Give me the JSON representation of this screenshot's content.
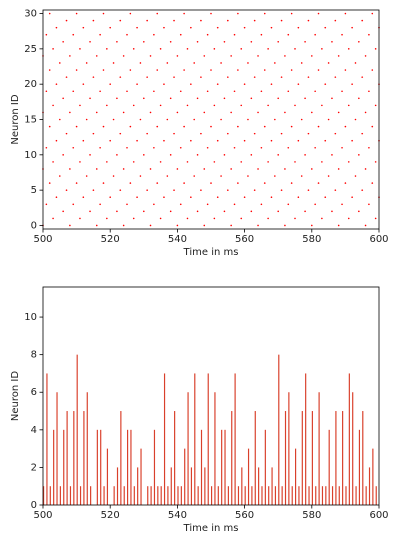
{
  "chart_data": [
    {
      "type": "scatter",
      "xlabel": "Time in ms",
      "ylabel": "Neuron ID",
      "color": "#ff0000",
      "xlim": [
        500,
        600
      ],
      "xticks": [
        500,
        520,
        540,
        560,
        580,
        600
      ],
      "ylim": [
        -0.5,
        30.5
      ],
      "yticks": [
        0,
        5,
        10,
        15,
        20,
        25,
        30
      ],
      "neurons": [
        {
          "y": 0,
          "x": [
            500,
            508,
            516,
            524,
            532,
            540,
            548,
            556,
            564,
            572,
            580,
            588,
            596
          ]
        },
        {
          "y": 1,
          "x": [
            503,
            511,
            519,
            527,
            535,
            543,
            551,
            559,
            567,
            575,
            583,
            591,
            599
          ]
        },
        {
          "y": 2,
          "x": [
            506,
            514,
            522,
            530,
            538,
            546,
            554,
            562,
            570,
            578,
            586,
            594
          ]
        },
        {
          "y": 3,
          "x": [
            501,
            509,
            517,
            525,
            533,
            541,
            549,
            557,
            565,
            573,
            581,
            589,
            597
          ]
        },
        {
          "y": 4,
          "x": [
            504,
            512,
            520,
            528,
            536,
            544,
            552,
            560,
            568,
            576,
            584,
            592,
            600
          ]
        },
        {
          "y": 5,
          "x": [
            507,
            515,
            523,
            531,
            539,
            547,
            555,
            563,
            571,
            579,
            587,
            595
          ]
        },
        {
          "y": 6,
          "x": [
            502,
            510,
            518,
            526,
            534,
            542,
            550,
            558,
            566,
            574,
            582,
            590,
            598
          ]
        },
        {
          "y": 7,
          "x": [
            505,
            513,
            521,
            529,
            537,
            545,
            553,
            561,
            569,
            577,
            585,
            593
          ]
        },
        {
          "y": 8,
          "x": [
            500,
            508,
            516,
            524,
            532,
            540,
            548,
            556,
            564,
            572,
            580,
            588,
            596
          ]
        },
        {
          "y": 9,
          "x": [
            503,
            511,
            519,
            527,
            535,
            543,
            551,
            559,
            567,
            575,
            583,
            591,
            599
          ]
        },
        {
          "y": 10,
          "x": [
            506,
            514,
            522,
            530,
            538,
            546,
            554,
            562,
            570,
            578,
            586,
            594
          ]
        },
        {
          "y": 11,
          "x": [
            501,
            509,
            517,
            525,
            533,
            541,
            549,
            557,
            565,
            573,
            581,
            589,
            597
          ]
        },
        {
          "y": 12,
          "x": [
            504,
            512,
            520,
            528,
            536,
            544,
            552,
            560,
            568,
            576,
            584,
            592,
            600
          ]
        },
        {
          "y": 13,
          "x": [
            507,
            515,
            523,
            531,
            539,
            547,
            555,
            563,
            571,
            579,
            587,
            595
          ]
        },
        {
          "y": 14,
          "x": [
            502,
            510,
            518,
            526,
            534,
            542,
            550,
            558,
            566,
            574,
            582,
            590,
            598
          ]
        },
        {
          "y": 15,
          "x": [
            505,
            513,
            521,
            529,
            537,
            545,
            553,
            561,
            569,
            577,
            585,
            593
          ]
        },
        {
          "y": 16,
          "x": [
            500,
            508,
            516,
            524,
            532,
            540,
            548,
            556,
            564,
            572,
            580,
            588,
            596
          ]
        },
        {
          "y": 17,
          "x": [
            503,
            511,
            519,
            527,
            535,
            543,
            551,
            559,
            567,
            575,
            583,
            591,
            599
          ]
        },
        {
          "y": 18,
          "x": [
            506,
            514,
            522,
            530,
            538,
            546,
            554,
            562,
            570,
            578,
            586,
            594
          ]
        },
        {
          "y": 19,
          "x": [
            501,
            509,
            517,
            525,
            533,
            541,
            549,
            557,
            565,
            573,
            581,
            589,
            597
          ]
        },
        {
          "y": 20,
          "x": [
            504,
            512,
            520,
            528,
            536,
            544,
            552,
            560,
            568,
            576,
            584,
            592,
            600
          ]
        },
        {
          "y": 21,
          "x": [
            507,
            515,
            523,
            531,
            539,
            547,
            555,
            563,
            571,
            579,
            587,
            595
          ]
        },
        {
          "y": 22,
          "x": [
            502,
            510,
            518,
            526,
            534,
            542,
            550,
            558,
            566,
            574,
            582,
            590,
            598
          ]
        },
        {
          "y": 23,
          "x": [
            505,
            513,
            521,
            529,
            537,
            545,
            553,
            561,
            569,
            577,
            585,
            593
          ]
        },
        {
          "y": 24,
          "x": [
            500,
            508,
            516,
            524,
            532,
            540,
            548,
            556,
            564,
            572,
            580,
            588,
            596
          ]
        },
        {
          "y": 25,
          "x": [
            503,
            511,
            519,
            527,
            535,
            543,
            551,
            559,
            567,
            575,
            583,
            591,
            599
          ]
        },
        {
          "y": 26,
          "x": [
            506,
            514,
            522,
            530,
            538,
            546,
            554,
            562,
            570,
            578,
            586,
            594
          ]
        },
        {
          "y": 27,
          "x": [
            501,
            509,
            517,
            525,
            533,
            541,
            549,
            557,
            565,
            573,
            581,
            589,
            597
          ]
        },
        {
          "y": 28,
          "x": [
            504,
            512,
            520,
            528,
            536,
            544,
            552,
            560,
            568,
            576,
            584,
            592,
            600
          ]
        },
        {
          "y": 29,
          "x": [
            507,
            515,
            523,
            531,
            539,
            547,
            555,
            563,
            571,
            579,
            587,
            595
          ]
        },
        {
          "y": 30,
          "x": [
            502,
            510,
            518,
            526,
            534,
            542,
            550,
            558,
            566,
            574,
            582,
            590,
            598
          ]
        }
      ]
    },
    {
      "type": "histogram",
      "xlabel": "Time in ms",
      "ylabel": "Neuron ID",
      "color": "#d9402b",
      "xlim": [
        500,
        600
      ],
      "xticks": [
        500,
        520,
        540,
        560,
        580,
        600
      ],
      "ylim": [
        0,
        11.6
      ],
      "yticks": [
        0,
        2,
        4,
        6,
        8,
        10
      ],
      "bins": [
        500,
        501,
        502,
        503,
        504,
        505,
        506,
        507,
        508,
        509,
        510,
        511,
        512,
        513,
        514,
        515,
        516,
        517,
        518,
        519,
        520,
        521,
        522,
        523,
        524,
        525,
        526,
        527,
        528,
        529,
        530,
        531,
        532,
        533,
        534,
        535,
        536,
        537,
        538,
        539,
        540,
        541,
        542,
        543,
        544,
        545,
        546,
        547,
        548,
        549,
        550,
        551,
        552,
        553,
        554,
        555,
        556,
        557,
        558,
        559,
        560,
        561,
        562,
        563,
        564,
        565,
        566,
        567,
        568,
        569,
        570,
        571,
        572,
        573,
        574,
        575,
        576,
        577,
        578,
        579,
        580,
        581,
        582,
        583,
        584,
        585,
        586,
        587,
        588,
        589,
        590,
        591,
        592,
        593,
        594,
        595,
        596,
        597,
        598,
        599,
        600
      ],
      "values": [
        1,
        7,
        1,
        4,
        6,
        1,
        4,
        5,
        1,
        5,
        8,
        1,
        5,
        6,
        1,
        0,
        4,
        4,
        1,
        3,
        0,
        1,
        2,
        5,
        1,
        4,
        4,
        1,
        2,
        3,
        0,
        1,
        1,
        4,
        1,
        1,
        7,
        1,
        2,
        5,
        1,
        1,
        3,
        6,
        2,
        7,
        1,
        4,
        2,
        7,
        1,
        6,
        1,
        4,
        4,
        1,
        5,
        7,
        1,
        2,
        1,
        3,
        1,
        5,
        2,
        1,
        4,
        1,
        2,
        1,
        8,
        1,
        5,
        6,
        1,
        3,
        1,
        5,
        7,
        1,
        5,
        1,
        6,
        1,
        1,
        4,
        1,
        5,
        1,
        5,
        1,
        7,
        6,
        1,
        4,
        5,
        1,
        2,
        3,
        1
      ]
    }
  ]
}
